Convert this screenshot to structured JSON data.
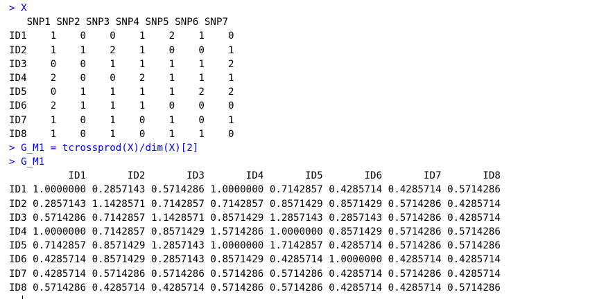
{
  "prompt": ">",
  "commands": {
    "c1": "X",
    "c2": "G_M1 = tcrossprod(X)/dim(X)[2]",
    "c3": "G_M1"
  },
  "x_matrix": {
    "header": "   SNP1 SNP2 SNP3 SNP4 SNP5 SNP6 SNP7",
    "rows": [
      "ID1    1    0    0    1    2    1    0",
      "ID2    1    1    2    1    0    0    1",
      "ID3    0    0    1    1    1    1    2",
      "ID4    2    0    0    2    1    1    1",
      "ID5    0    1    1    1    1    2    2",
      "ID6    2    1    1    1    0    0    0",
      "ID7    1    0    1    0    1    0    1",
      "ID8    1    0    1    0    1    1    0"
    ]
  },
  "g_matrix": {
    "header": "          ID1       ID2       ID3       ID4       ID5       ID6       ID7       ID8",
    "rows": [
      "ID1 1.0000000 0.2857143 0.5714286 1.0000000 0.7142857 0.4285714 0.4285714 0.5714286",
      "ID2 0.2857143 1.1428571 0.7142857 0.7142857 0.8571429 0.8571429 0.5714286 0.4285714",
      "ID3 0.5714286 0.7142857 1.1428571 0.8571429 1.2857143 0.2857143 0.5714286 0.4285714",
      "ID4 1.0000000 0.7142857 0.8571429 1.5714286 1.0000000 0.8571429 0.5714286 0.5714286",
      "ID5 0.7142857 0.8571429 1.2857143 1.0000000 1.7142857 0.4285714 0.5714286 0.5714286",
      "ID6 0.4285714 0.8571429 0.2857143 0.8571429 0.4285714 1.0000000 0.4285714 0.4285714",
      "ID7 0.4285714 0.5714286 0.5714286 0.5714286 0.5714286 0.4285714 0.5714286 0.4285714",
      "ID8 0.5714286 0.4285714 0.4285714 0.5714286 0.5714286 0.4285714 0.4285714 0.5714286"
    ]
  }
}
